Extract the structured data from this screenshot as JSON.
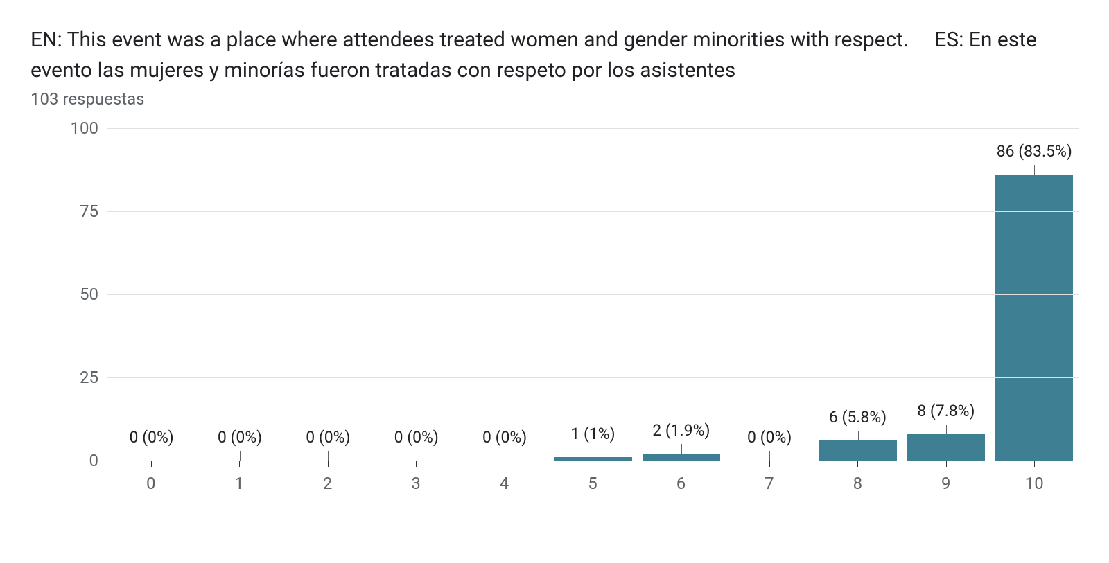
{
  "title": "EN: This event was a place where attendees treated women and gender minorities with respect.     ES: En este evento las mujeres y minorías fueron tratadas con respeto por los asistentes",
  "subtitle": "103 respuestas",
  "chart": {
    "type": "bar",
    "bar_color": "#3f7f93",
    "background_color": "#ffffff",
    "grid_color": "#e0e0e0",
    "axis_color": "#333333",
    "text_color": "#5f6368",
    "label_fontsize": 24,
    "data_label_fontsize": 23,
    "ylim": [
      0,
      100
    ],
    "yticks": [
      0,
      25,
      50,
      75,
      100
    ],
    "bar_width_ratio": 0.88,
    "categories": [
      "0",
      "1",
      "2",
      "3",
      "4",
      "5",
      "6",
      "7",
      "8",
      "9",
      "10"
    ],
    "values": [
      0,
      0,
      0,
      0,
      0,
      1,
      2,
      0,
      6,
      8,
      86
    ],
    "data_labels": [
      "0 (0%)",
      "0 (0%)",
      "0 (0%)",
      "0 (0%)",
      "0 (0%)",
      "1 (1%)",
      "2 (1.9%)",
      "0 (0%)",
      "6 (5.8%)",
      "8 (7.8%)",
      "86 (83.5%)"
    ]
  }
}
